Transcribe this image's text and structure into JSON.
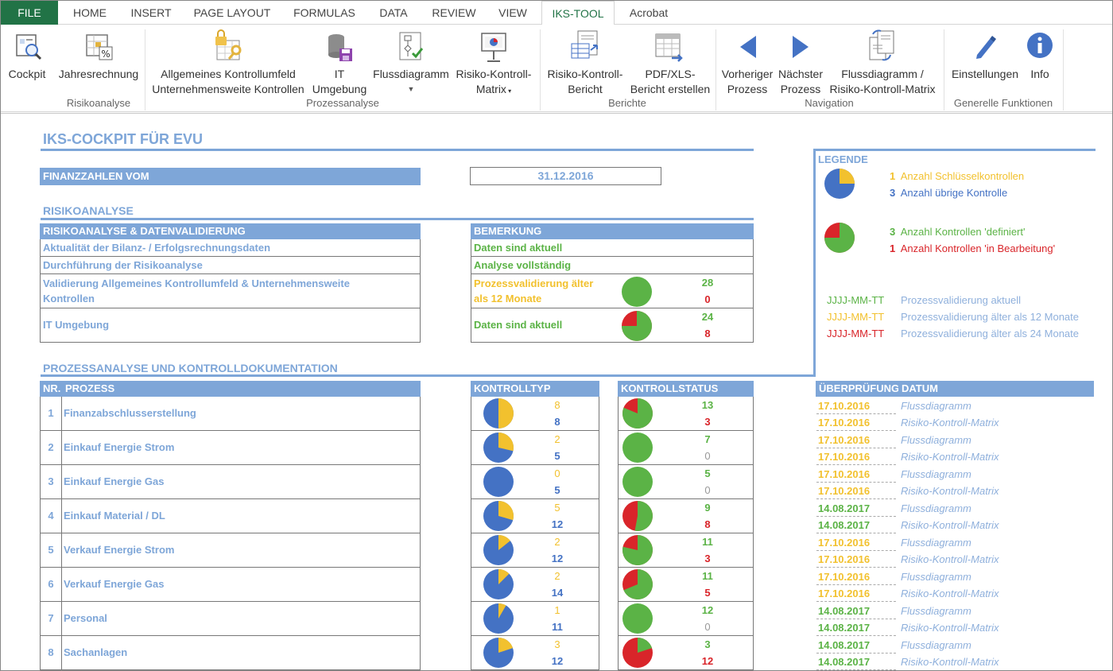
{
  "tabs": [
    "FILE",
    "HOME",
    "INSERT",
    "PAGE LAYOUT",
    "FORMULAS",
    "DATA",
    "REVIEW",
    "VIEW",
    "IKS-TOOL",
    "Acrobat"
  ],
  "ribbon": {
    "cockpit": "Cockpit",
    "jahresrechnung": "Jahresrechnung",
    "kontrollumfeld_1": "Allgemeines Kontrollumfeld",
    "kontrollumfeld_2": "Unternehmensweite Kontrollen",
    "it_1": "IT",
    "it_2": "Umgebung",
    "flussdiagramm": "Flussdiagramm",
    "rkm_1": "Risiko-Kontroll-",
    "rkm_2": "Matrix",
    "rkb_1": "Risiko-Kontroll-",
    "rkb_2": "Bericht",
    "pdf_1": "PDF/XLS-",
    "pdf_2": "Bericht erstellen",
    "prev_1": "Vorheriger",
    "prev_2": "Prozess",
    "next_1": "Nächster",
    "next_2": "Prozess",
    "fd_1": "Flussdiagramm /",
    "fd_2": "Risiko-Kontroll-Matrix",
    "einstellungen": "Einstellungen",
    "info": "Info",
    "groups": {
      "risikoanalyse": "Risikoanalyse",
      "prozessanalyse": "Prozessanalyse",
      "berichte": "Berichte",
      "navigation": "Navigation",
      "generelle": "Generelle Funktionen"
    }
  },
  "sheet": {
    "title": "IKS-COCKPIT FÜR EVU",
    "finanz_label": "FINANZZAHLEN VOM",
    "finanz_date": "31.12.2016",
    "risiko_title": "RISIKOANALYSE",
    "risiko_header": "RISIKOANALYSE & DATENVALIDIERUNG",
    "bemerkung_header": "BEMERKUNG",
    "risiko_rows": [
      {
        "label": "Aktualität der Bilanz- / Erfolgsrechnungsdaten",
        "remark": "Daten sind aktuell"
      },
      {
        "label": "Durchführung der Risikoanalyse",
        "remark": "Analyse vollständig"
      },
      {
        "label_1": "Validierung Allgemeines Kontrollumfeld & Unternehmensweite",
        "label_2": "Kontrollen",
        "remark_1": "Prozessvalidierung älter",
        "remark_2": "als 12 Monate",
        "n_defined": "28",
        "n_open": "0"
      },
      {
        "label": "IT Umgebung",
        "remark": "Daten sind aktuell",
        "n_defined": "24",
        "n_open": "8"
      }
    ],
    "prozess_title": "PROZESSANALYSE UND KONTROLLDOKUMENTATION",
    "nr_header": "NR.",
    "prozess_header": "PROZESS",
    "kontrolltyp_header": "KONTROLLTYP",
    "kontrollstatus_header": "KONTROLLSTATUS",
    "ueberpruefung_header": "ÜBERPRÜFUNG",
    "datum_header": "DATUM",
    "ref_fd": "Flussdiagramm",
    "ref_rkm": "Risiko-Kontroll-Matrix",
    "processes": [
      {
        "nr": "1",
        "name": "Finanzabschlusserstellung",
        "key": "8",
        "other": "8",
        "defined": "13",
        "open": "3",
        "d1": "17.10.2016",
        "d2": "17.10.2016",
        "c1": "yellow",
        "c2": "yellow"
      },
      {
        "nr": "2",
        "name": "Einkauf Energie Strom",
        "key": "2",
        "other": "5",
        "defined": "7",
        "open": "0",
        "d1": "17.10.2016",
        "d2": "17.10.2016",
        "c1": "yellow",
        "c2": "yellow"
      },
      {
        "nr": "3",
        "name": "Einkauf Energie Gas",
        "key": "0",
        "other": "5",
        "defined": "5",
        "open": "0",
        "d1": "17.10.2016",
        "d2": "17.10.2016",
        "c1": "yellow",
        "c2": "yellow"
      },
      {
        "nr": "4",
        "name": "Einkauf Material / DL",
        "key": "5",
        "other": "12",
        "defined": "9",
        "open": "8",
        "d1": "14.08.2017",
        "d2": "14.08.2017",
        "c1": "green",
        "c2": "green"
      },
      {
        "nr": "5",
        "name": "Verkauf Energie Strom",
        "key": "2",
        "other": "12",
        "defined": "11",
        "open": "3",
        "d1": "17.10.2016",
        "d2": "17.10.2016",
        "c1": "yellow",
        "c2": "yellow"
      },
      {
        "nr": "6",
        "name": "Verkauf Energie Gas",
        "key": "2",
        "other": "14",
        "defined": "11",
        "open": "5",
        "d1": "17.10.2016",
        "d2": "17.10.2016",
        "c1": "yellow",
        "c2": "yellow"
      },
      {
        "nr": "7",
        "name": "Personal",
        "key": "1",
        "other": "11",
        "defined": "12",
        "open": "0",
        "d1": "14.08.2017",
        "d2": "14.08.2017",
        "c1": "green",
        "c2": "green"
      },
      {
        "nr": "8",
        "name": "Sachanlagen",
        "key": "3",
        "other": "12",
        "defined": "3",
        "open": "12",
        "d1": "14.08.2017",
        "d2": "14.08.2017",
        "c1": "green",
        "c2": "green"
      }
    ]
  },
  "legend": {
    "title": "LEGENDE",
    "key_n": "1",
    "key_text": "Anzahl Schlüsselkontrollen",
    "other_n": "3",
    "other_text": "Anzahl übrige Kontrolle",
    "def_n": "3",
    "def_text": "Anzahl Kontrollen 'definiert'",
    "open_n": "1",
    "open_text": "Anzahl Kontrollen 'in Bearbeitung'",
    "date_fmt": "JJJJ-MM-TT",
    "valid_current": "Prozessvalidierung aktuell",
    "valid_12": "Prozessvalidierung älter als 12 Monate",
    "valid_24": "Prozessvalidierung älter als 24 Monate"
  },
  "colors": {
    "blue": "#4472c4",
    "yellow": "#f2c12e",
    "green": "#5bb346",
    "red": "#d9252a",
    "accent": "#7ea6d8",
    "excel_green": "#217346"
  }
}
